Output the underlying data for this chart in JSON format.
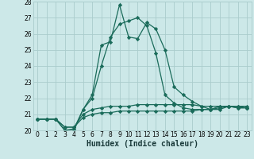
{
  "xlabel": "Humidex (Indice chaleur)",
  "bg_color": "#cce8e8",
  "grid_color": "#aacccc",
  "line_color": "#1a6b5a",
  "xlim": [
    -0.5,
    23.5
  ],
  "ylim": [
    20,
    28
  ],
  "xtick_vals": [
    0,
    1,
    2,
    3,
    4,
    5,
    6,
    7,
    8,
    9,
    10,
    11,
    12,
    13,
    14,
    15,
    16,
    17,
    18,
    19,
    20,
    21,
    22,
    23
  ],
  "xtick_labels": [
    "0",
    "1",
    "2",
    "3",
    "4",
    "5",
    "6",
    "7",
    "8",
    "9",
    "10",
    "11",
    "12",
    "13",
    "14",
    "15",
    "16",
    "17",
    "18",
    "19",
    "20",
    "21",
    "22",
    "23"
  ],
  "ytick_vals": [
    20,
    21,
    22,
    23,
    24,
    25,
    26,
    27,
    28
  ],
  "ytick_labels": [
    "20",
    "21",
    "22",
    "23",
    "24",
    "25",
    "26",
    "27",
    "28"
  ],
  "series": [
    [
      20.7,
      20.7,
      20.7,
      20.0,
      20.0,
      21.3,
      22.2,
      25.3,
      25.5,
      27.8,
      25.8,
      25.7,
      26.7,
      26.3,
      25.0,
      22.7,
      22.2,
      21.8,
      21.5,
      21.3,
      21.3,
      21.5,
      21.5,
      21.4
    ],
    [
      20.7,
      20.7,
      20.7,
      20.0,
      20.1,
      21.3,
      22.0,
      24.0,
      25.8,
      26.6,
      26.8,
      27.0,
      26.5,
      24.8,
      22.2,
      21.7,
      21.4,
      21.3,
      21.3,
      21.3,
      21.5,
      21.5,
      21.4,
      21.4
    ],
    [
      20.7,
      20.7,
      20.7,
      20.2,
      20.2,
      21.0,
      21.3,
      21.4,
      21.5,
      21.5,
      21.5,
      21.6,
      21.6,
      21.6,
      21.6,
      21.6,
      21.6,
      21.6,
      21.5,
      21.5,
      21.5,
      21.5,
      21.5,
      21.5
    ],
    [
      20.7,
      20.7,
      20.7,
      20.2,
      20.2,
      20.8,
      21.0,
      21.1,
      21.1,
      21.2,
      21.2,
      21.2,
      21.2,
      21.2,
      21.2,
      21.2,
      21.2,
      21.2,
      21.3,
      21.3,
      21.4,
      21.5,
      21.4,
      21.4
    ]
  ],
  "marker": "D",
  "markersize": 2.2,
  "linewidth": 0.9,
  "xlabel_fontsize": 7,
  "tick_fontsize": 5.5
}
